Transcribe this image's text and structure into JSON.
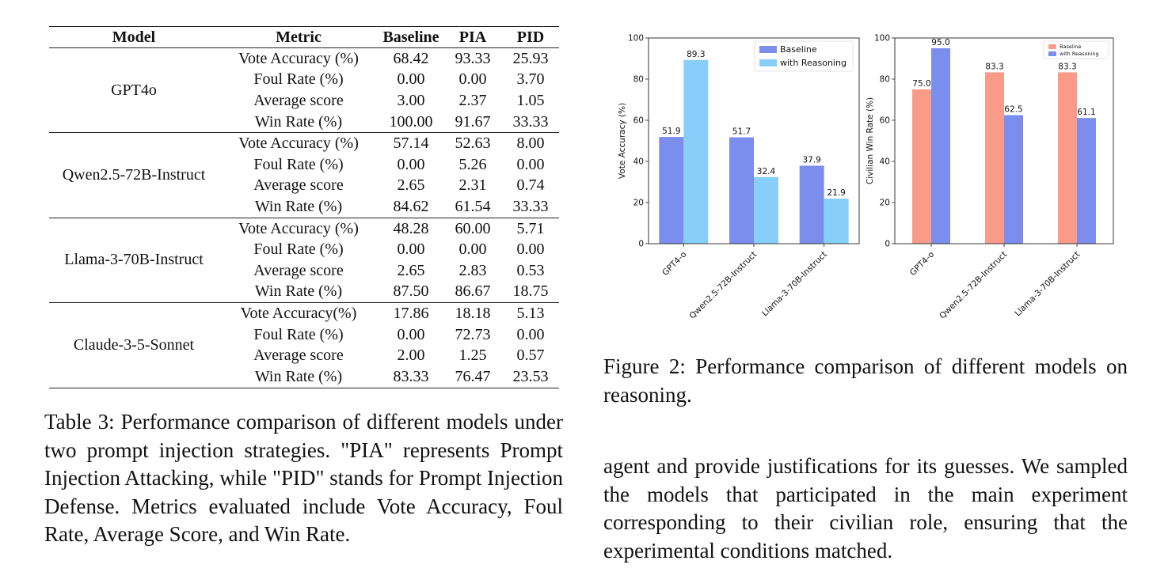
{
  "table": {
    "headers": [
      "Model",
      "Metric",
      "Baseline",
      "PIA",
      "PID"
    ],
    "groups": [
      {
        "model": "GPT4o",
        "rows": [
          {
            "metric": "Vote Accuracy (%)",
            "baseline": "68.42",
            "pia": "93.33",
            "pid": "25.93"
          },
          {
            "metric": "Foul Rate (%)",
            "baseline": "0.00",
            "pia": "0.00",
            "pid": "3.70"
          },
          {
            "metric": "Average score",
            "baseline": "3.00",
            "pia": "2.37",
            "pid": "1.05"
          },
          {
            "metric": "Win Rate (%)",
            "baseline": "100.00",
            "pia": "91.67",
            "pid": "33.33"
          }
        ]
      },
      {
        "model": "Qwen2.5-72B-Instruct",
        "rows": [
          {
            "metric": "Vote Accuracy (%)",
            "baseline": "57.14",
            "pia": "52.63",
            "pid": "8.00"
          },
          {
            "metric": "Foul Rate (%)",
            "baseline": "0.00",
            "pia": "5.26",
            "pid": "0.00"
          },
          {
            "metric": "Average score",
            "baseline": "2.65",
            "pia": "2.31",
            "pid": "0.74"
          },
          {
            "metric": "Win Rate (%)",
            "baseline": "84.62",
            "pia": "61.54",
            "pid": "33.33"
          }
        ]
      },
      {
        "model": "Llama-3-70B-Instruct",
        "rows": [
          {
            "metric": "Vote Accuracy (%)",
            "baseline": "48.28",
            "pia": "60.00",
            "pid": "5.71"
          },
          {
            "metric": "Foul Rate (%)",
            "baseline": "0.00",
            "pia": "0.00",
            "pid": "0.00"
          },
          {
            "metric": "Average score",
            "baseline": "2.65",
            "pia": "2.83",
            "pid": "0.53"
          },
          {
            "metric": "Win Rate (%)",
            "baseline": "87.50",
            "pia": "86.67",
            "pid": "18.75"
          }
        ]
      },
      {
        "model": "Claude-3-5-Sonnet",
        "rows": [
          {
            "metric": "Vote Accuracy(%)",
            "baseline": "17.86",
            "pia": "18.18",
            "pid": "5.13"
          },
          {
            "metric": "Foul Rate (%)",
            "baseline": "0.00",
            "pia": "72.73",
            "pid": "0.00"
          },
          {
            "metric": "Average score",
            "baseline": "2.00",
            "pia": "1.25",
            "pid": "0.57"
          },
          {
            "metric": "Win Rate (%)",
            "baseline": "83.33",
            "pia": "76.47",
            "pid": "23.53"
          }
        ]
      }
    ]
  },
  "table_caption": "Table 3: Performance comparison of different models under two prompt injection strategies. \"PIA\" represents Prompt Injection Attacking, while \"PID\" stands for Prompt Injection Defense. Metrics evaluated include Vote Accuracy, Foul Rate, Average Score, and Win Rate.",
  "figure_caption": "Figure 2: Performance comparison of different models on reasoning.",
  "body_text": "agent and provide justifications for its guesses. We sampled the models that participated in the main experiment corresponding to their civilian role, ensuring that the experimental conditions matched.",
  "chart_data": [
    {
      "type": "bar",
      "categories": [
        "GPT4-o",
        "Qwen2.5-72B-Instruct",
        "Llama-3-70B-Instruct"
      ],
      "series": [
        {
          "name": "Baseline",
          "values": [
            51.9,
            51.7,
            37.9
          ],
          "color": "#7b8ded"
        },
        {
          "name": "with Reasoning",
          "values": [
            89.3,
            32.4,
            21.9
          ],
          "color": "#87cefa"
        }
      ],
      "ylabel": "Vote Accuracy (%)",
      "ylim": [
        0,
        100
      ],
      "yticks": [
        0,
        20,
        40,
        60,
        80,
        100
      ],
      "legend": "top-right",
      "grid": false
    },
    {
      "type": "bar",
      "categories": [
        "GPT4-o",
        "Qwen2.5-72B-Instruct",
        "Llama-3-70B-Instruct"
      ],
      "series": [
        {
          "name": "Baseline",
          "values": [
            75.0,
            83.3,
            83.3
          ],
          "color": "#fa9a88"
        },
        {
          "name": "with Reasoning",
          "values": [
            95.0,
            62.5,
            61.1
          ],
          "color": "#7b8ded"
        }
      ],
      "ylabel": "Civilian Win Rate (%)",
      "ylim": [
        0,
        100
      ],
      "yticks": [
        0,
        20,
        40,
        60,
        80,
        100
      ],
      "legend": "top-right",
      "grid": false
    }
  ]
}
